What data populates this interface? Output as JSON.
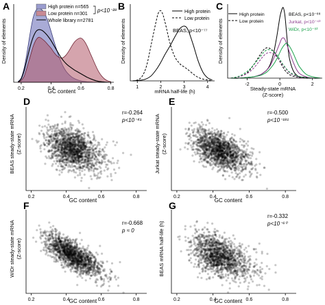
{
  "figure": {
    "colors": {
      "high_protein": "#7c7fbf",
      "low_protein": "#b35a6a",
      "overlap": "#8e6677",
      "beas": "#000000",
      "jurkat": "#8b3a8b",
      "widr": "#1aa14a",
      "points": "#000000"
    }
  },
  "chart_data": [
    {
      "panel": "A",
      "type": "area",
      "xlabel": "GC content",
      "ylabel": "Density of elements",
      "xlim": [
        0.15,
        0.82
      ],
      "ylim": [
        0,
        4.6
      ],
      "xticks": [
        "0.2",
        "0.4",
        "0.6",
        "0.8"
      ],
      "legend": "top-right",
      "legend_entries": [
        {
          "label": "High protein n=565",
          "style": "fill-high"
        },
        {
          "label": "Low protein n=301",
          "style": "fill-low"
        },
        {
          "label": "Whole library n=2781",
          "style": "line"
        }
      ],
      "pvalue": "p<10⁻²⁸",
      "x": [
        0.18,
        0.2,
        0.22,
        0.24,
        0.26,
        0.28,
        0.3,
        0.32,
        0.34,
        0.36,
        0.38,
        0.4,
        0.42,
        0.44,
        0.46,
        0.48,
        0.5,
        0.52,
        0.54,
        0.56,
        0.58,
        0.6,
        0.62,
        0.64,
        0.66,
        0.68,
        0.7,
        0.72,
        0.74,
        0.76,
        0.78,
        0.8
      ],
      "series": [
        {
          "name": "High protein n=565",
          "values": [
            0.05,
            0.25,
            0.85,
            1.8,
            2.9,
            3.8,
            4.25,
            4.35,
            4.25,
            4.0,
            3.55,
            3.0,
            2.4,
            1.85,
            1.35,
            0.95,
            0.65,
            0.45,
            0.3,
            0.2,
            0.13,
            0.08,
            0.05,
            0.03,
            0.02,
            0.01,
            0,
            0,
            0,
            0,
            0,
            0
          ]
        },
        {
          "name": "Low protein n=301",
          "values": [
            0,
            0.1,
            0.35,
            0.9,
            1.5,
            2.1,
            2.5,
            2.65,
            2.55,
            2.4,
            2.2,
            2.0,
            1.75,
            1.55,
            1.45,
            1.45,
            1.6,
            1.85,
            2.15,
            2.4,
            2.55,
            2.6,
            2.45,
            2.15,
            1.75,
            1.35,
            0.95,
            0.6,
            0.35,
            0.18,
            0.08,
            0.03
          ]
        },
        {
          "name": "Whole library n=2781",
          "values": [
            0.02,
            0.2,
            0.7,
            1.4,
            2.1,
            2.65,
            3.0,
            3.1,
            3.05,
            2.9,
            2.7,
            2.45,
            2.15,
            1.85,
            1.55,
            1.3,
            1.1,
            0.95,
            0.82,
            0.7,
            0.6,
            0.5,
            0.4,
            0.3,
            0.22,
            0.15,
            0.09,
            0.05,
            0.03,
            0.01,
            0,
            0
          ]
        }
      ]
    },
    {
      "panel": "B",
      "type": "line",
      "xlabel": "mRNA half-life (h)",
      "ylabel": "Density of elements",
      "xlim": [
        0.7,
        4.3
      ],
      "ylim": [
        0,
        1.75
      ],
      "xticks": [
        "1",
        "2",
        "3",
        "4"
      ],
      "legend": "top-right",
      "legend_entries": [
        {
          "label": "High protein",
          "style": "solid"
        },
        {
          "label": "Low protein",
          "style": "dashed"
        }
      ],
      "annotation": "BEAS, p<10⁻⁷⁷",
      "x": [
        0.8,
        1.0,
        1.2,
        1.4,
        1.6,
        1.8,
        1.9,
        2.0,
        2.1,
        2.2,
        2.4,
        2.6,
        2.8,
        2.9,
        3.0,
        3.1,
        3.2,
        3.4,
        3.6,
        3.8,
        4.0,
        4.2
      ],
      "series": [
        {
          "name": "High protein",
          "values": [
            0,
            0.01,
            0.02,
            0.05,
            0.12,
            0.25,
            0.33,
            0.42,
            0.52,
            0.62,
            0.8,
            1.0,
            1.18,
            1.23,
            1.25,
            1.22,
            1.12,
            0.8,
            0.45,
            0.2,
            0.07,
            0.02
          ]
        },
        {
          "name": "Low protein",
          "values": [
            0,
            0.02,
            0.1,
            0.35,
            0.85,
            1.35,
            1.55,
            1.6,
            1.5,
            1.3,
            0.85,
            0.55,
            0.4,
            0.35,
            0.32,
            0.28,
            0.24,
            0.15,
            0.08,
            0.04,
            0.02,
            0
          ]
        }
      ]
    },
    {
      "panel": "C",
      "type": "line",
      "xlabel": "Steady-state mRNA",
      "xlabel2": "(Z-score)",
      "ylabel": "Density of elements",
      "xlim": [
        -3.2,
        2.6
      ],
      "ylim": [
        0,
        1.1
      ],
      "xticks": [
        "-2",
        "0",
        "2"
      ],
      "legend": "top-left",
      "legend_entries": [
        {
          "label": "High protein",
          "style": "solid"
        },
        {
          "label": "Low protein",
          "style": "dashed"
        }
      ],
      "annotations": [
        {
          "text": "BEAS, p<10⁻⁸⁸",
          "color": "#000000"
        },
        {
          "text": "Jurkat, p<10⁻⁴³",
          "color": "#8b3a8b"
        },
        {
          "text": "WiDr, p<10⁻⁸²",
          "color": "#1aa14a"
        }
      ],
      "x": [
        -3.0,
        -2.5,
        -2.0,
        -1.6,
        -1.2,
        -1.0,
        -0.8,
        -0.6,
        -0.4,
        -0.2,
        0,
        0.1,
        0.2,
        0.3,
        0.4,
        0.5,
        0.6,
        0.8,
        1.0,
        1.2,
        1.6,
        2.0,
        2.5
      ],
      "series": [
        {
          "name": "BEAS high protein",
          "values": [
            0,
            0,
            0.01,
            0.02,
            0.05,
            0.08,
            0.12,
            0.2,
            0.35,
            0.6,
            0.9,
            1.0,
            1.05,
            0.95,
            0.7,
            0.45,
            0.28,
            0.12,
            0.05,
            0.02,
            0.01,
            0,
            0
          ]
        },
        {
          "name": "BEAS low protein",
          "values": [
            0,
            0.02,
            0.08,
            0.2,
            0.35,
            0.42,
            0.45,
            0.44,
            0.4,
            0.33,
            0.25,
            0.2,
            0.16,
            0.12,
            0.09,
            0.07,
            0.05,
            0.03,
            0.02,
            0.01,
            0,
            0,
            0
          ]
        },
        {
          "name": "Jurkat high protein",
          "values": [
            0,
            0,
            0.01,
            0.02,
            0.05,
            0.08,
            0.12,
            0.18,
            0.28,
            0.4,
            0.52,
            0.58,
            0.6,
            0.58,
            0.52,
            0.45,
            0.38,
            0.25,
            0.14,
            0.07,
            0.02,
            0,
            0
          ]
        },
        {
          "name": "Jurkat low protein",
          "values": [
            0,
            0.02,
            0.07,
            0.15,
            0.27,
            0.33,
            0.37,
            0.38,
            0.36,
            0.32,
            0.26,
            0.22,
            0.19,
            0.16,
            0.13,
            0.1,
            0.08,
            0.05,
            0.03,
            0.01,
            0,
            0,
            0
          ]
        },
        {
          "name": "WiDr high protein",
          "values": [
            0,
            0,
            0.01,
            0.02,
            0.04,
            0.06,
            0.09,
            0.14,
            0.2,
            0.28,
            0.38,
            0.43,
            0.47,
            0.5,
            0.52,
            0.5,
            0.47,
            0.38,
            0.27,
            0.17,
            0.06,
            0.02,
            0
          ]
        },
        {
          "name": "WiDr low protein",
          "values": [
            0,
            0.03,
            0.1,
            0.2,
            0.32,
            0.38,
            0.42,
            0.42,
            0.4,
            0.35,
            0.28,
            0.24,
            0.2,
            0.17,
            0.14,
            0.11,
            0.09,
            0.06,
            0.04,
            0.02,
            0.01,
            0,
            0
          ]
        }
      ]
    },
    {
      "panel": "D",
      "type": "scatter",
      "xlabel": "GC content",
      "ylabel": "BEAS steady-state mRNA",
      "ylabel2": "(Z-score)",
      "xlim": [
        0.17,
        0.86
      ],
      "ylim": [
        -3.5,
        3.5
      ],
      "xticks": [
        "0.2",
        "0.4",
        "0.6",
        "0.8"
      ],
      "r": "r=-0.264",
      "p": "p<10⁻⁴¹",
      "slope": -4.3,
      "intercept": 1.85,
      "x_center": 0.4,
      "x_spread": 0.1,
      "noise": 0.85,
      "n_points": 1500
    },
    {
      "panel": "E",
      "type": "scatter",
      "xlabel": "GC content",
      "ylabel": "Jurkat steady-state mRNA",
      "ylabel2": "(Z-score)",
      "xlim": [
        0.17,
        0.86
      ],
      "ylim": [
        -3.5,
        3.5
      ],
      "xticks": [
        "0.2",
        "0.4",
        "0.6",
        "0.8"
      ],
      "r": "r=-0.500",
      "p": "p<10⁻¹⁸¹",
      "slope": -6.0,
      "intercept": 2.5,
      "x_center": 0.4,
      "x_spread": 0.1,
      "noise": 0.75,
      "n_points": 1500
    },
    {
      "panel": "F",
      "type": "scatter",
      "xlabel": "GC content",
      "ylabel": "WiDr steady-state mRNA",
      "ylabel2": "(Z-score)",
      "xlim": [
        0.17,
        0.86
      ],
      "ylim": [
        -3.5,
        3.5
      ],
      "xticks": [
        "0.2",
        "0.4",
        "0.6",
        "0.8"
      ],
      "r": "r=-0.668",
      "p": "p ≈ 0",
      "slope": -7.8,
      "intercept": 3.1,
      "x_center": 0.4,
      "x_spread": 0.1,
      "noise": 0.6,
      "n_points": 1500
    },
    {
      "panel": "G",
      "type": "scatter",
      "xlabel": "GC content",
      "ylabel": "BEAS mRNA half-life (h)",
      "xlim": [
        0.17,
        0.86
      ],
      "ylim": [
        0.3,
        5.0
      ],
      "xticks": [
        "0.2",
        "0.4",
        "0.6",
        "0.8"
      ],
      "r": "r=-0.332",
      "p": "p<10⁻⁶⁰",
      "slope": -3.6,
      "intercept": 3.95,
      "x_center": 0.4,
      "x_spread": 0.1,
      "noise": 0.55,
      "n_points": 1400
    }
  ]
}
